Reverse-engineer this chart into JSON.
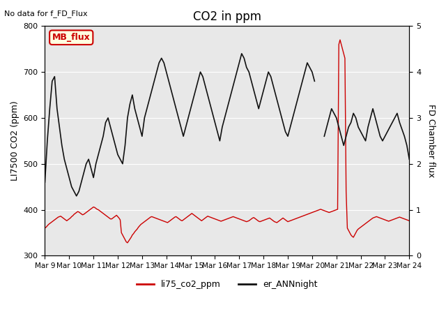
{
  "title": "CO2 in ppm",
  "ylabel_left": "LI7500 CO2 (ppm)",
  "ylabel_right": "FD Chamber flux",
  "note": "No data for f_FD_Flux",
  "mb_flux_label": "MB_flux",
  "legend_red": "li75_co2_ppm",
  "legend_black": "er_ANNnight",
  "ylim_left": [
    300,
    800
  ],
  "ylim_right": [
    0.0,
    5.0
  ],
  "background_color": "#e8e8e8",
  "red_color": "#cc0000",
  "black_color": "#111111",
  "xtick_labels": [
    "Mar 9",
    "Mar 10",
    "Mar 11",
    "Mar 12",
    "Mar 13",
    "Mar 14",
    "Mar 15",
    "Mar 16",
    "Mar 17",
    "Mar 18",
    "Mar 19",
    "Mar 20",
    "Mar 21",
    "Mar 22",
    "Mar 23",
    "Mar 24"
  ],
  "red_x": [
    0,
    0.05,
    0.1,
    0.15,
    0.2,
    0.25,
    0.3,
    0.35,
    0.4,
    0.45,
    0.5,
    0.55,
    0.6,
    0.65,
    0.7,
    0.75,
    0.8,
    0.85,
    0.9,
    0.95,
    1.0,
    1.05,
    1.1,
    1.15,
    1.2,
    1.25,
    1.3,
    1.35,
    1.4,
    1.45,
    1.5,
    1.55,
    1.6,
    1.65,
    1.7,
    1.75,
    1.8,
    1.85,
    1.9,
    1.95,
    2.0,
    2.05,
    2.1,
    2.15,
    2.2,
    2.25,
    2.3,
    2.35,
    2.4,
    2.45,
    2.5,
    2.55,
    2.6,
    2.65,
    2.7,
    2.75,
    2.8,
    2.85,
    2.9,
    2.95,
    3.0,
    3.05,
    3.1,
    3.15,
    3.2,
    3.25,
    3.3,
    3.35,
    3.4,
    3.45,
    3.5,
    3.55,
    3.6,
    3.65,
    3.7,
    3.75,
    3.8,
    3.85,
    3.9,
    3.95,
    4.0,
    4.05,
    4.1,
    4.15,
    4.2,
    4.25,
    4.3,
    4.35,
    4.4,
    4.45,
    4.5,
    4.55,
    4.6,
    4.65,
    4.7,
    4.75,
    4.8,
    4.85,
    4.9,
    4.95,
    5.0,
    5.05,
    5.1,
    5.15,
    5.2,
    5.25,
    5.3,
    5.35,
    5.4,
    5.45,
    5.5,
    5.55,
    5.6,
    5.65,
    5.7,
    5.75,
    5.8,
    5.85,
    5.9,
    5.95,
    6.0,
    6.05,
    6.1,
    6.15,
    6.2,
    6.25,
    6.3,
    6.35,
    6.4,
    6.45,
    6.5,
    6.55,
    6.6,
    6.65,
    6.7,
    6.75,
    6.8,
    6.85,
    6.9,
    6.95,
    7.0,
    7.05,
    7.1,
    7.15,
    7.2,
    7.25,
    7.3,
    7.35,
    7.4,
    7.45,
    7.5,
    7.55,
    7.6,
    7.65,
    7.7,
    7.75,
    7.8,
    7.85,
    7.9,
    7.95,
    8.0,
    8.05,
    8.1,
    8.15,
    8.2,
    8.25,
    8.3,
    8.35,
    8.4,
    8.45,
    8.5,
    8.55,
    8.6,
    8.65,
    8.7,
    8.75,
    8.8,
    8.85,
    8.9,
    8.95,
    9.0,
    9.05,
    9.1,
    9.15,
    9.2,
    9.25,
    9.3,
    9.35,
    9.4,
    9.45,
    9.5,
    9.55,
    9.6,
    9.65,
    9.7,
    9.75,
    9.8,
    9.85,
    9.9,
    9.95,
    10.0,
    10.05,
    10.1,
    10.15,
    10.2,
    10.25,
    10.3,
    10.35,
    10.4,
    10.45,
    10.5,
    10.55,
    10.6,
    10.65,
    10.7,
    10.75,
    10.8,
    10.85,
    10.9,
    10.95,
    11.0,
    11.05,
    11.1,
    11.15,
    11.2,
    11.25,
    11.3,
    11.35,
    11.4,
    11.45,
    11.5,
    11.55,
    11.6,
    11.65,
    11.7,
    11.75,
    11.8,
    11.85,
    11.9,
    11.95,
    12.0,
    12.05,
    12.1,
    12.15,
    12.2,
    12.25,
    12.3,
    12.35,
    12.4,
    12.45,
    12.5,
    12.55,
    12.6,
    12.65,
    12.7,
    12.75,
    12.8,
    12.85,
    12.9,
    12.95,
    13.0,
    13.05,
    13.1,
    13.15,
    13.2,
    13.25,
    13.3,
    13.35,
    13.4,
    13.45,
    13.5,
    13.55,
    13.6,
    13.65,
    13.7,
    13.75,
    13.8,
    13.85,
    13.9,
    13.95,
    14.0,
    14.05,
    14.1,
    14.15,
    14.2,
    14.25,
    14.3,
    14.35,
    14.4,
    14.45,
    14.5,
    14.55,
    14.6,
    14.65,
    14.7,
    14.75,
    14.8,
    14.85,
    14.9,
    14.95,
    15.0
  ],
  "red_y": [
    360,
    362,
    365,
    368,
    370,
    372,
    374,
    376,
    378,
    380,
    382,
    384,
    385,
    386,
    384,
    382,
    380,
    378,
    376,
    378,
    380,
    382,
    385,
    387,
    390,
    392,
    394,
    396,
    395,
    393,
    391,
    389,
    390,
    392,
    394,
    396,
    398,
    400,
    402,
    404,
    406,
    405,
    403,
    401,
    400,
    398,
    396,
    394,
    392,
    390,
    388,
    386,
    384,
    382,
    380,
    380,
    382,
    384,
    386,
    388,
    385,
    382,
    378,
    350,
    345,
    340,
    335,
    330,
    328,
    332,
    336,
    340,
    345,
    348,
    352,
    355,
    358,
    362,
    365,
    368,
    370,
    372,
    374,
    376,
    378,
    380,
    382,
    384,
    385,
    384,
    383,
    382,
    381,
    380,
    379,
    378,
    377,
    376,
    375,
    374,
    373,
    372,
    374,
    376,
    378,
    380,
    382,
    384,
    385,
    383,
    381,
    379,
    377,
    376,
    378,
    380,
    382,
    384,
    386,
    388,
    390,
    392,
    390,
    388,
    386,
    384,
    382,
    380,
    378,
    376,
    378,
    380,
    382,
    384,
    386,
    385,
    384,
    383,
    382,
    381,
    380,
    379,
    378,
    377,
    376,
    375,
    376,
    377,
    378,
    379,
    380,
    381,
    382,
    383,
    384,
    385,
    384,
    383,
    382,
    381,
    380,
    379,
    378,
    377,
    376,
    375,
    374,
    375,
    376,
    378,
    380,
    382,
    383,
    381,
    379,
    377,
    375,
    374,
    375,
    376,
    377,
    378,
    379,
    380,
    381,
    382,
    380,
    378,
    376,
    374,
    373,
    372,
    374,
    376,
    378,
    380,
    382,
    380,
    378,
    376,
    374,
    375,
    376,
    377,
    378,
    379,
    380,
    381,
    382,
    383,
    384,
    385,
    386,
    387,
    388,
    389,
    390,
    391,
    392,
    393,
    394,
    395,
    396,
    397,
    398,
    399,
    400,
    401,
    400,
    399,
    398,
    397,
    396,
    395,
    394,
    395,
    396,
    397,
    398,
    399,
    400,
    401,
    760,
    770,
    760,
    750,
    740,
    730,
    440,
    360,
    355,
    350,
    345,
    342,
    340,
    345,
    350,
    355,
    358,
    360,
    362,
    364,
    366,
    368,
    370,
    372,
    374,
    376,
    378,
    380,
    382,
    383,
    384,
    385,
    384,
    383,
    382,
    381,
    380,
    379,
    378,
    377,
    376,
    375,
    376,
    377,
    378,
    379,
    380,
    381,
    382,
    383,
    384,
    383,
    382,
    381,
    380,
    379,
    378,
    377,
    376
  ],
  "black_x_seg1": [
    0,
    0.1,
    0.2,
    0.3,
    0.4,
    0.5,
    0.6,
    0.7,
    0.8,
    0.9,
    1.0,
    1.1,
    1.2,
    1.3,
    1.4,
    1.5,
    1.6,
    1.7,
    1.8,
    1.9,
    2.0,
    2.1,
    2.2,
    2.3,
    2.4,
    2.5,
    2.6,
    2.7,
    2.8,
    2.9,
    3.0,
    3.1,
    3.2,
    3.3,
    3.4,
    3.5,
    3.6,
    3.7,
    3.8,
    3.9,
    4.0,
    4.1,
    4.2,
    4.3,
    4.4,
    4.5,
    4.6,
    4.7,
    4.8,
    4.9,
    5.0,
    5.1,
    5.2,
    5.3,
    5.4,
    5.5,
    5.6,
    5.7,
    5.8,
    5.9,
    6.0,
    6.1,
    6.2,
    6.3,
    6.4,
    6.5,
    6.6,
    6.7,
    6.8,
    6.9,
    7.0,
    7.1,
    7.2,
    7.3,
    7.4,
    7.5,
    7.6,
    7.7,
    7.8,
    7.9,
    8.0,
    8.1,
    8.2,
    8.3,
    8.4,
    8.5,
    8.6,
    8.7,
    8.8,
    8.9,
    9.0,
    9.1,
    9.2,
    9.3,
    9.4,
    9.5,
    9.6,
    9.7,
    9.8,
    9.9,
    10.0,
    10.1,
    10.2,
    10.3,
    10.4,
    10.5,
    10.6,
    10.7,
    10.8,
    10.9,
    11.0,
    11.1
  ],
  "black_y_seg1": [
    460,
    550,
    620,
    680,
    690,
    620,
    580,
    540,
    510,
    490,
    470,
    450,
    440,
    430,
    440,
    460,
    480,
    500,
    510,
    490,
    470,
    500,
    520,
    540,
    560,
    590,
    600,
    580,
    560,
    540,
    520,
    510,
    500,
    540,
    600,
    630,
    650,
    620,
    600,
    580,
    560,
    600,
    620,
    640,
    660,
    680,
    700,
    720,
    730,
    720,
    700,
    680,
    660,
    640,
    620,
    600,
    580,
    560,
    580,
    600,
    620,
    640,
    660,
    680,
    700,
    690,
    670,
    650,
    630,
    610,
    590,
    570,
    550,
    580,
    600,
    620,
    640,
    660,
    680,
    700,
    720,
    740,
    730,
    710,
    700,
    680,
    660,
    640,
    620,
    640,
    660,
    680,
    700,
    690,
    670,
    650,
    630,
    610,
    590,
    570,
    560,
    580,
    600,
    620,
    640,
    660,
    680,
    700,
    720,
    710,
    700,
    680
  ],
  "black_x_seg2": [
    11.5,
    11.6,
    11.7,
    11.8,
    11.9,
    12.0,
    12.1,
    12.2,
    12.3,
    12.4,
    12.5,
    12.6,
    12.7,
    12.8,
    12.9,
    13.0,
    13.1,
    13.2,
    13.3,
    13.4,
    13.5,
    13.6,
    13.7,
    13.8,
    13.9,
    14.0,
    14.1,
    14.2,
    14.3,
    14.4,
    14.5,
    14.6,
    14.7,
    14.8,
    14.9,
    15.0
  ],
  "black_y_seg2": [
    560,
    580,
    600,
    620,
    610,
    600,
    580,
    560,
    540,
    560,
    580,
    590,
    610,
    600,
    580,
    570,
    560,
    550,
    580,
    600,
    620,
    600,
    580,
    560,
    550,
    560,
    570,
    580,
    590,
    600,
    610,
    590,
    575,
    560,
    540,
    510
  ]
}
